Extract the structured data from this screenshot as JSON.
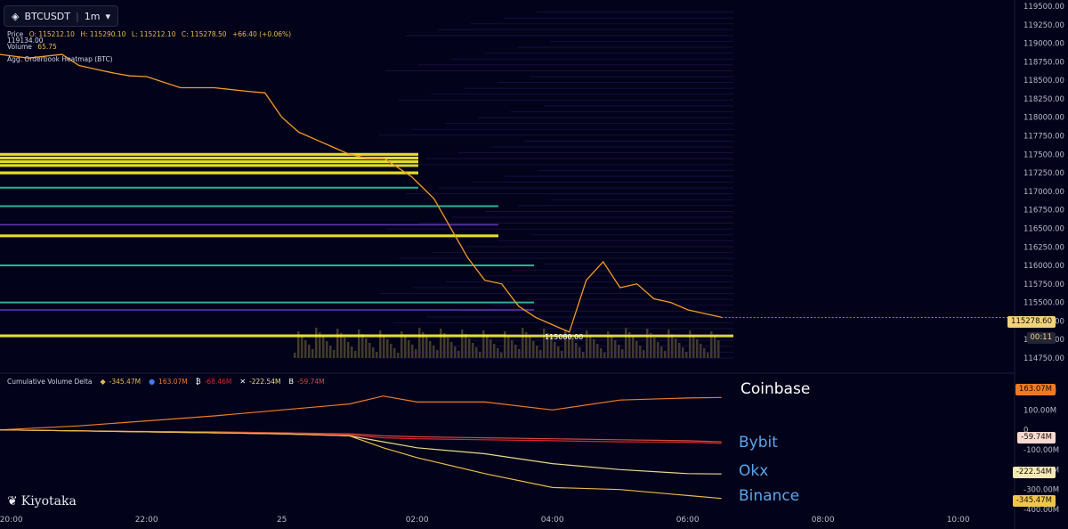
{
  "header": {
    "symbol": "BTCUSDT",
    "interval": "1m",
    "price_label": "Price",
    "open": "O: 115212.10",
    "high": "H: 115290.10",
    "low": "L: 115212.10",
    "close": "C: 115278.50",
    "change": "+66.40 (+0.06%)",
    "volume_label": "Volume",
    "volume_value": "65.75",
    "heatmap_label": "Agg. Orderbook Heatmap (BTC)",
    "high_marker": "119134.00",
    "low_marker": "115080.00"
  },
  "cvd": {
    "title": "Cumulative Volume Delta",
    "values": [
      {
        "icon": "binance-icon",
        "value": "-345.47M",
        "color": "#e9b949"
      },
      {
        "icon": "coinbase-icon",
        "value": "163.07M",
        "color": "#f07a24"
      },
      {
        "icon": "bybit-icon",
        "value": "-68.46M",
        "color": "#e0222c"
      },
      {
        "icon": "okx-icon",
        "value": "-222.54M",
        "color": "#e8d98a"
      },
      {
        "icon": "bitget-icon",
        "value": "-59.74M",
        "color": "#d04b3b"
      }
    ]
  },
  "exchange_labels": {
    "coinbase": "Coinbase",
    "bybit": "Bybit",
    "okx": "Okx",
    "binance": "Binance"
  },
  "badges": {
    "price": "115278.60",
    "countdown": "00:11",
    "coinbase": "163.07M",
    "bitget": "-59.74M",
    "okx": "-222.54M",
    "binance": "-345.47M"
  },
  "logo": "Kiyotaka",
  "colors": {
    "background": "#02031a",
    "price_line": "#f29b21",
    "heat_yellow": "#fbf52d",
    "heat_purple": "#3b1f7a"
  },
  "chart_data": [
    {
      "type": "line",
      "title": "BTCUSDT 1m",
      "ylim": [
        114750,
        119500
      ],
      "y_ticks": [
        119500,
        119250,
        119000,
        118750,
        118500,
        118250,
        118000,
        117750,
        117500,
        117250,
        117000,
        116750,
        116500,
        116250,
        116000,
        115750,
        115500,
        115250,
        115000,
        114750
      ],
      "x_ticks": [
        "20:00",
        "22:00",
        "25",
        "02:00",
        "04:00",
        "06:00",
        "08:00",
        "10:00"
      ],
      "series": [
        {
          "x": [
            "19:50",
            "20:15",
            "20:45",
            "21:00",
            "21:15",
            "21:30",
            "21:45",
            "22:00",
            "22:30",
            "23:00",
            "23:30",
            "23:45",
            "00:00",
            "00:15",
            "00:30",
            "00:45",
            "01:00",
            "01:15",
            "01:30",
            "01:45",
            "01:55",
            "02:15",
            "02:30",
            "02:45",
            "03:00",
            "03:15",
            "03:30",
            "03:45",
            "04:00",
            "04:15",
            "04:30",
            "04:45",
            "05:00",
            "05:15",
            "05:30",
            "05:45",
            "06:00",
            "06:15",
            "06:30"
          ],
          "values": [
            118850,
            118800,
            118850,
            118700,
            118650,
            118600,
            118560,
            118550,
            118400,
            118400,
            118350,
            118330,
            118000,
            117800,
            117700,
            117600,
            117500,
            117450,
            117450,
            117300,
            117200,
            116900,
            116500,
            116100,
            115800,
            115750,
            115450,
            115300,
            115200,
            115100,
            115800,
            116050,
            115700,
            115750,
            115550,
            115500,
            115400,
            115350,
            115300
          ]
        }
      ],
      "bands": [
        {
          "y": 117500,
          "intensity": "high"
        },
        {
          "y": 117450,
          "intensity": "high"
        },
        {
          "y": 117400,
          "intensity": "high"
        },
        {
          "y": 117350,
          "intensity": "high"
        },
        {
          "y": 117250,
          "intensity": "high"
        },
        {
          "y": 117050,
          "intensity": "medium"
        },
        {
          "y": 116800,
          "intensity": "medium"
        },
        {
          "y": 116550,
          "intensity": "low"
        },
        {
          "y": 116400,
          "intensity": "high"
        },
        {
          "y": 116000,
          "intensity": "medium"
        },
        {
          "y": 115500,
          "intensity": "medium"
        },
        {
          "y": 115400,
          "intensity": "low"
        },
        {
          "y": 115050,
          "intensity": "high"
        }
      ]
    },
    {
      "type": "line",
      "title": "Cumulative Volume Delta",
      "ylim": [
        -400,
        200
      ],
      "y_ticks": [
        "200.00M",
        "100.00M",
        "0",
        "-100.00M",
        "-200.00M",
        "-300.00M",
        "-400.00M"
      ],
      "x": [
        "19:50",
        "21:00",
        "22:00",
        "23:00",
        "00:00",
        "01:00",
        "01:30",
        "02:00",
        "03:00",
        "04:00",
        "05:00",
        "06:00",
        "06:30"
      ],
      "series": [
        {
          "name": "Coinbase",
          "values": [
            0,
            20,
            45,
            70,
            100,
            130,
            170,
            140,
            140,
            100,
            150,
            160,
            163
          ]
        },
        {
          "name": "Bybit",
          "values": [
            0,
            -5,
            -10,
            -15,
            -20,
            -25,
            -40,
            -45,
            -50,
            -55,
            -60,
            -62,
            -68
          ]
        },
        {
          "name": "Bitget",
          "values": [
            0,
            -5,
            -8,
            -10,
            -15,
            -20,
            -30,
            -35,
            -40,
            -45,
            -50,
            -55,
            -60
          ]
        },
        {
          "name": "Okx",
          "values": [
            0,
            -5,
            -10,
            -15,
            -20,
            -30,
            -60,
            -90,
            -120,
            -170,
            -200,
            -220,
            -222
          ]
        },
        {
          "name": "Binance",
          "values": [
            0,
            -5,
            -10,
            -15,
            -20,
            -30,
            -90,
            -140,
            -220,
            -290,
            -300,
            -330,
            -345
          ]
        }
      ]
    }
  ]
}
